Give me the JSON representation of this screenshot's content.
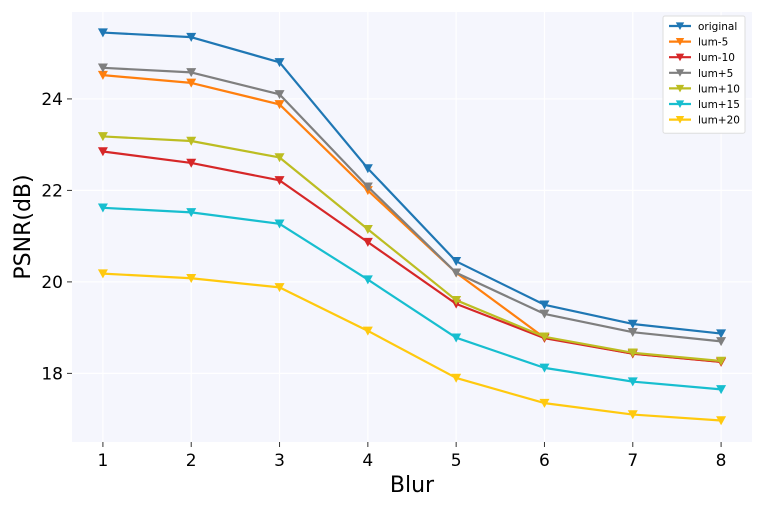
{
  "chart_data": {
    "type": "line",
    "title": "",
    "xlabel": "Blur",
    "ylabel": "PSNR(dB)",
    "x": [
      1,
      2,
      3,
      4,
      5,
      6,
      7,
      8
    ],
    "xlim": [
      0.65,
      8.35
    ],
    "ylim": [
      16.5,
      25.9
    ],
    "yticks": [
      18,
      20,
      22,
      24
    ],
    "xticks": [
      1,
      2,
      3,
      4,
      5,
      6,
      7,
      8
    ],
    "grid": true,
    "legend_position": "top-right",
    "marker": "triangle-down",
    "series": [
      {
        "name": "original",
        "color": "#1f77b4",
        "values": [
          25.45,
          25.35,
          24.8,
          22.48,
          20.45,
          19.5,
          19.08,
          18.87
        ]
      },
      {
        "name": "lum-5",
        "color": "#ff7f0e",
        "values": [
          24.52,
          24.35,
          23.88,
          22.0,
          20.2,
          18.78,
          18.43,
          18.25
        ]
      },
      {
        "name": "lum-10",
        "color": "#d62728",
        "values": [
          22.85,
          22.6,
          22.22,
          20.87,
          19.52,
          18.77,
          18.43,
          18.25
        ]
      },
      {
        "name": "lum+5",
        "color": "#7f7f7f",
        "values": [
          24.68,
          24.58,
          24.1,
          22.08,
          20.2,
          19.3,
          18.9,
          18.7
        ]
      },
      {
        "name": "lum+10",
        "color": "#bcbd22",
        "values": [
          23.18,
          23.08,
          22.72,
          21.15,
          19.6,
          18.8,
          18.45,
          18.27
        ]
      },
      {
        "name": "lum+15",
        "color": "#17becf",
        "values": [
          21.62,
          21.52,
          21.27,
          20.05,
          18.78,
          18.12,
          17.82,
          17.65
        ]
      },
      {
        "name": "lum+20",
        "color": "#ffc90e",
        "values": [
          20.18,
          20.08,
          19.88,
          18.93,
          17.9,
          17.35,
          17.1,
          16.97
        ]
      }
    ]
  }
}
